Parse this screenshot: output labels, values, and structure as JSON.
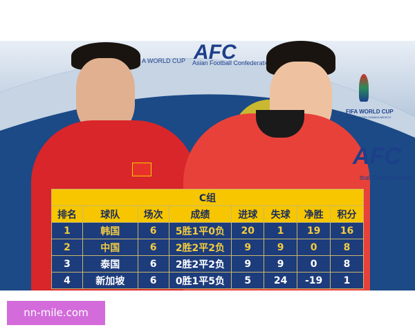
{
  "background": {
    "logos": {
      "fifa_left": "A WORLD CUP",
      "afc_top": "AFC",
      "afc_top_sub": "Asian Football Confederation",
      "fifa_right": "FIFA WORLD CUP",
      "fifa_right_sub": "UNITED STATES CANADA MEXICO",
      "afc_right": "AFC",
      "afc_right_sub": "tball Confederation"
    }
  },
  "table": {
    "title": "C组",
    "headers": [
      "排名",
      "球队",
      "场次",
      "成绩",
      "进球",
      "失球",
      "净胜",
      "积分"
    ],
    "rows": [
      [
        "1",
        "韩国",
        "6",
        "5胜1平0负",
        "20",
        "1",
        "19",
        "16"
      ],
      [
        "2",
        "中国",
        "6",
        "2胜2平2负",
        "9",
        "9",
        "0",
        "8"
      ],
      [
        "3",
        "泰国",
        "6",
        "2胜2平2负",
        "9",
        "9",
        "0",
        "8"
      ],
      [
        "4",
        "新加坡",
        "6",
        "0胜1平5负",
        "5",
        "24",
        "-19",
        "1"
      ]
    ],
    "colors": {
      "header_bg": "#f7c600",
      "row_bg": "#1d3c7c",
      "highlight_text": "#f2cc3f",
      "text": "#ffffff"
    }
  },
  "watermark": {
    "text": "nn-mile.com",
    "color": "#d36bdb"
  }
}
